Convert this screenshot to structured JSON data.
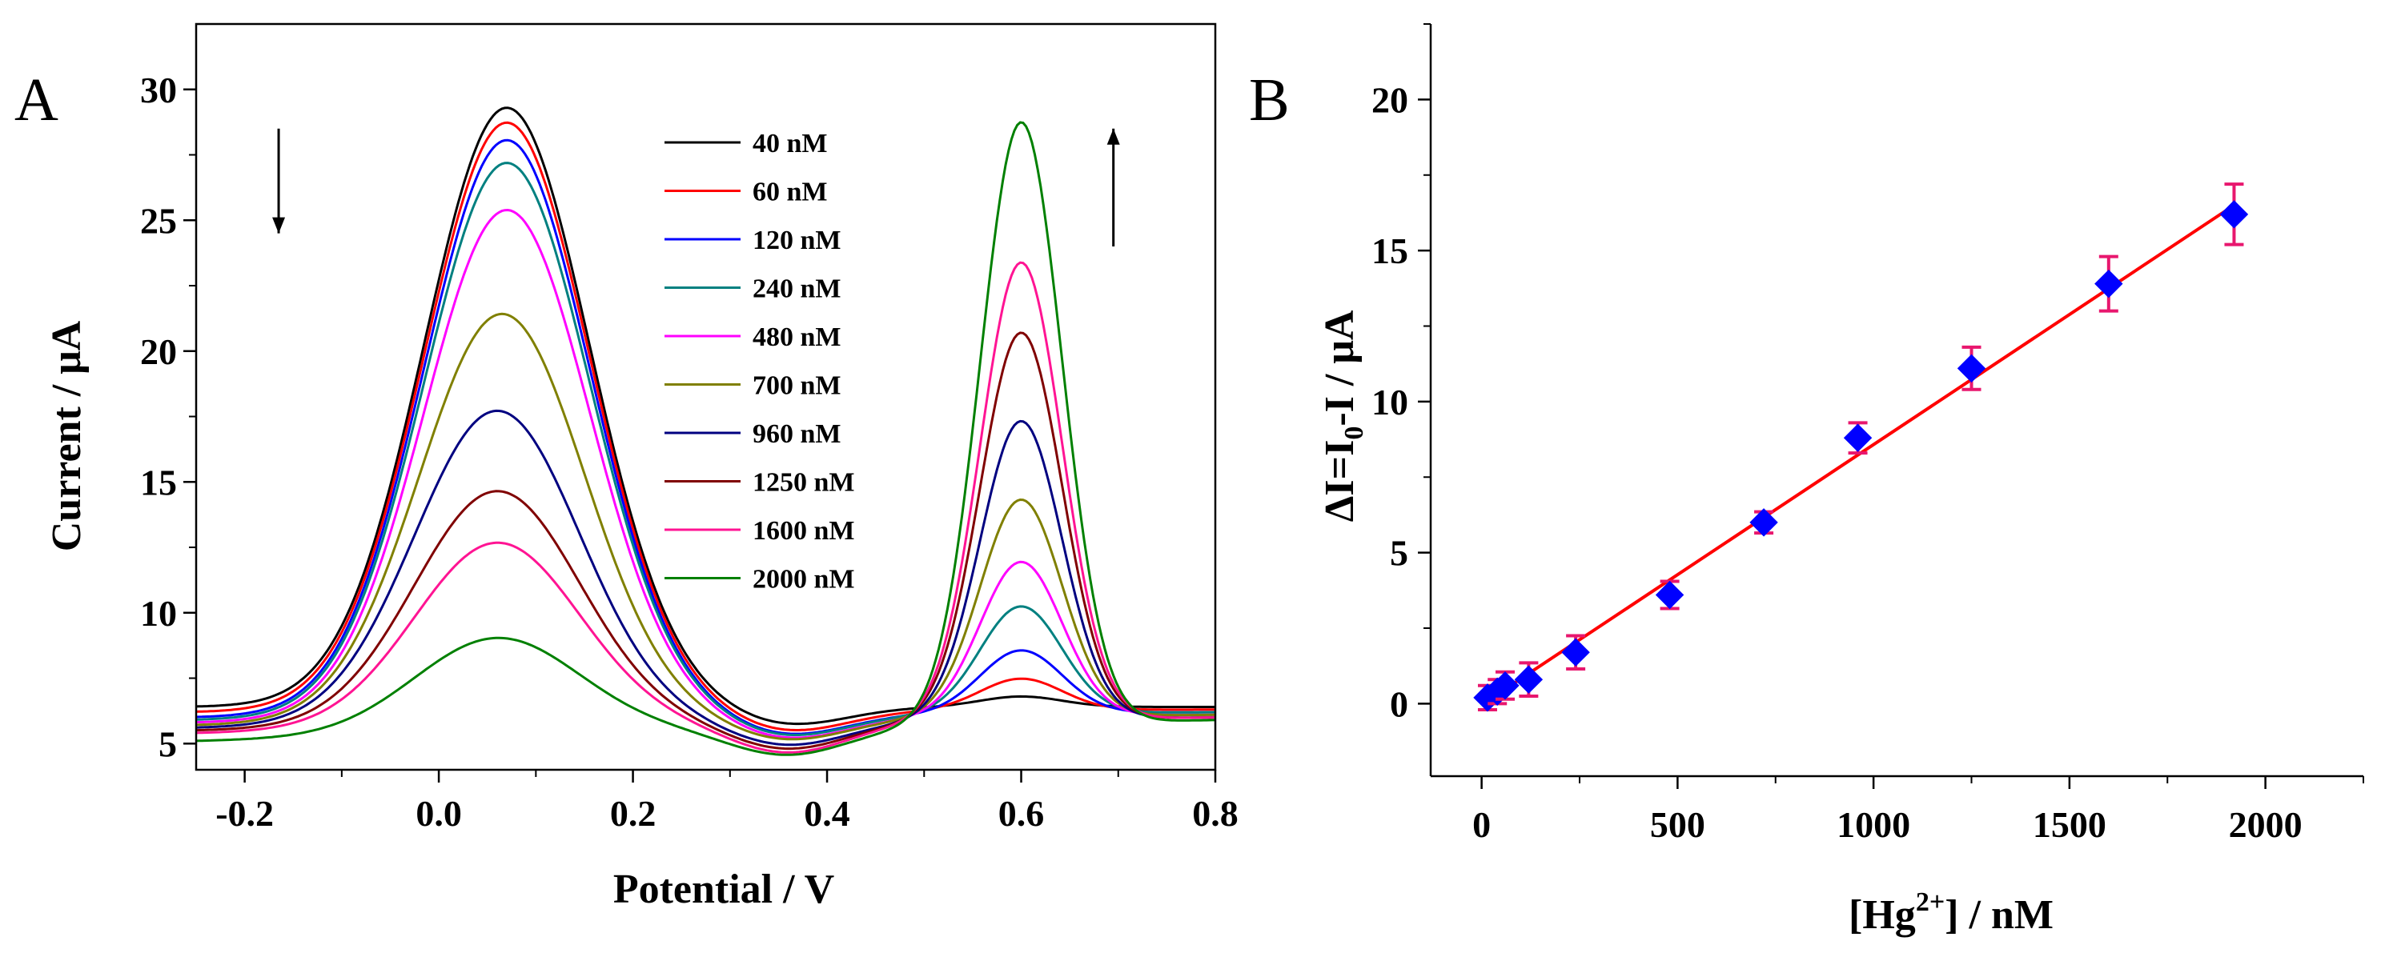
{
  "chart_data": [
    {
      "type": "line",
      "panel_label": "A",
      "title": "",
      "xlabel": "Potential / V",
      "ylabel": "Current / μA",
      "xlim": [
        -0.25,
        0.8
      ],
      "ylim": [
        4,
        32.5
      ],
      "xticks": [
        -0.2,
        0.0,
        0.2,
        0.4,
        0.6,
        0.8
      ],
      "xtick_labels": [
        "-0.2",
        "0.0",
        "0.2",
        "0.4",
        "0.6",
        "0.8"
      ],
      "yticks": [
        5,
        10,
        15,
        20,
        25,
        30
      ],
      "ytick_labels": [
        "5",
        "10",
        "15",
        "20",
        "25",
        "30"
      ],
      "legend_position": "top-center",
      "annotations": [
        {
          "type": "arrow-down",
          "x": -0.165,
          "y_from": 28.5,
          "y_to": 24.5
        },
        {
          "type": "arrow-up",
          "x": 0.695,
          "y_from": 24.0,
          "y_to": 28.5
        }
      ],
      "series": [
        {
          "name": "40 nM",
          "color": "#000000",
          "baseline": 6.4,
          "peak1": 29.3,
          "pos1": 0.07,
          "peak2": 6.8,
          "valley": 6.3,
          "base_right": 6.4
        },
        {
          "name": "60 nM",
          "color": "#ff0000",
          "baseline": 6.2,
          "peak1": 28.7,
          "pos1": 0.07,
          "peak2": 7.5,
          "valley": 6.0,
          "base_right": 6.3
        },
        {
          "name": "120 nM",
          "color": "#0000ff",
          "baseline": 6.0,
          "peak1": 28.0,
          "pos1": 0.07,
          "peak2": 8.6,
          "valley": 5.8,
          "base_right": 6.2
        },
        {
          "name": "240 nM",
          "color": "#008080",
          "baseline": 5.9,
          "peak1": 27.1,
          "pos1": 0.07,
          "peak2": 10.3,
          "valley": 5.7,
          "base_right": 6.2
        },
        {
          "name": "480 nM",
          "color": "#ff00ff",
          "baseline": 5.8,
          "peak1": 25.3,
          "pos1": 0.07,
          "peak2": 12.0,
          "valley": 5.6,
          "base_right": 6.1
        },
        {
          "name": "700 nM",
          "color": "#808000",
          "baseline": 5.7,
          "peak1": 21.3,
          "pos1": 0.065,
          "peak2": 14.4,
          "valley": 5.5,
          "base_right": 6.1
        },
        {
          "name": "960 nM",
          "color": "#000080",
          "baseline": 5.6,
          "peak1": 17.6,
          "pos1": 0.06,
          "peak2": 17.4,
          "valley": 5.3,
          "base_right": 6.0
        },
        {
          "name": "1250 nM",
          "color": "#800000",
          "baseline": 5.5,
          "peak1": 14.5,
          "pos1": 0.06,
          "peak2": 20.8,
          "valley": 5.1,
          "base_right": 6.0
        },
        {
          "name": "1600 nM",
          "color": "#ff1493",
          "baseline": 5.4,
          "peak1": 12.5,
          "pos1": 0.06,
          "peak2": 23.5,
          "valley": 4.9,
          "base_right": 6.0
        },
        {
          "name": "2000 nM",
          "color": "#008000",
          "baseline": 5.1,
          "peak1": 8.8,
          "pos1": 0.06,
          "peak2": 28.9,
          "valley": 4.7,
          "base_right": 5.9
        }
      ]
    },
    {
      "type": "scatter",
      "panel_label": "B",
      "title": "",
      "xlabel": "[Hg2+] / nM",
      "xlabel_parts": {
        "pre": "[Hg",
        "sup": "2+",
        "post": "] / nM"
      },
      "ylabel": "ΔI=I0-I / μA",
      "ylabel_parts": {
        "pre": "ΔI=I",
        "sub": "0",
        "post": "-I / μA"
      },
      "xlim": [
        -130,
        2250
      ],
      "ylim": [
        -2.4,
        22.5
      ],
      "xticks": [
        0,
        500,
        1000,
        1500,
        2000
      ],
      "xtick_labels": [
        "0",
        "500",
        "1000",
        "1500",
        "2000"
      ],
      "yticks": [
        0,
        5,
        10,
        15,
        20
      ],
      "ytick_labels": [
        "0",
        "5",
        "10",
        "15",
        "20"
      ],
      "marker_color": "#0000ff",
      "errorbar_color": "#e8176e",
      "fit_line": {
        "color": "#ff0000",
        "x": [
          10,
          1920
        ],
        "y": [
          0.05,
          16.5
        ]
      },
      "points": [
        {
          "x": 15,
          "y": 0.2,
          "err": 0.4
        },
        {
          "x": 40,
          "y": 0.4,
          "err": 0.4
        },
        {
          "x": 60,
          "y": 0.6,
          "err": 0.45
        },
        {
          "x": 120,
          "y": 0.8,
          "err": 0.55
        },
        {
          "x": 240,
          "y": 1.7,
          "err": 0.55
        },
        {
          "x": 480,
          "y": 3.6,
          "err": 0.45
        },
        {
          "x": 720,
          "y": 6.0,
          "err": 0.35
        },
        {
          "x": 960,
          "y": 8.8,
          "err": 0.5
        },
        {
          "x": 1250,
          "y": 11.1,
          "err": 0.7
        },
        {
          "x": 1600,
          "y": 13.9,
          "err": 0.9
        },
        {
          "x": 1920,
          "y": 16.2,
          "err": 1.0
        }
      ]
    }
  ]
}
